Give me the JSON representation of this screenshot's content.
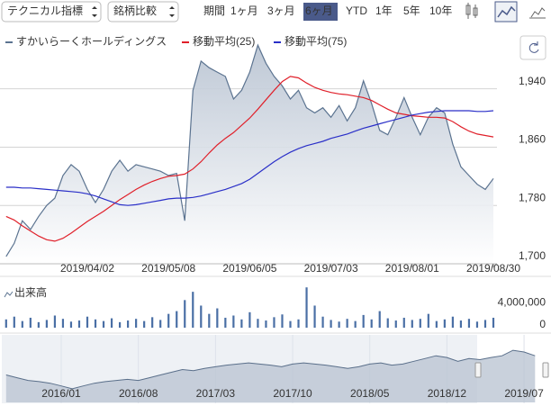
{
  "toolbar": {
    "dropdowns": [
      "テクニカル指標",
      "銘柄比較"
    ],
    "period_label": "期間",
    "periods": [
      "1ヶ月",
      "3ヶ月",
      "6ヶ月",
      "YTD",
      "1年",
      "5年",
      "10年"
    ],
    "selected": 2,
    "disabled": [
      5,
      6
    ]
  },
  "chart_data": [
    {
      "type": "line",
      "categories": [
        null,
        null,
        null,
        null,
        null,
        null,
        null,
        null,
        null,
        null,
        "2019/04/02",
        null,
        null,
        null,
        null,
        null,
        null,
        null,
        null,
        null,
        "2019/05/08",
        null,
        null,
        null,
        null,
        null,
        null,
        null,
        null,
        null,
        "2019/06/05",
        null,
        null,
        null,
        null,
        null,
        null,
        null,
        null,
        null,
        "2019/07/03",
        null,
        null,
        null,
        null,
        null,
        null,
        null,
        null,
        null,
        "2019/08/01",
        null,
        null,
        null,
        null,
        null,
        null,
        null,
        null,
        null,
        "2019/08/30"
      ],
      "series": [
        {
          "name": "すかいらーくホールディングス",
          "color": "#5b7390",
          "fill": "#c3ccd8",
          "values": [
            1710,
            1728,
            1759,
            1747,
            1765,
            1780,
            1790,
            1821,
            1836,
            1827,
            1802,
            1784,
            1802,
            1827,
            1842,
            1827,
            1836,
            1833,
            1830,
            1827,
            1821,
            1824,
            1759,
            1938,
            1978,
            1969,
            1963,
            1957,
            1926,
            1938,
            1963,
            2000,
            1975,
            1957,
            1944,
            1926,
            1938,
            1914,
            1907,
            1914,
            1901,
            1917,
            1896,
            1914,
            1951,
            1920,
            1883,
            1877,
            1901,
            1928,
            1901,
            1877,
            1901,
            1914,
            1907,
            1864,
            1833,
            1821,
            1809,
            1802,
            1817
          ]
        },
        {
          "name": "移動平均(25)",
          "color": "#e0202a",
          "values": [
            1765,
            1760,
            1752,
            1745,
            1738,
            1733,
            1731,
            1735,
            1742,
            1750,
            1758,
            1765,
            1772,
            1780,
            1788,
            1795,
            1802,
            1808,
            1813,
            1817,
            1820,
            1821,
            1823,
            1830,
            1840,
            1852,
            1863,
            1872,
            1880,
            1890,
            1900,
            1912,
            1925,
            1938,
            1950,
            1957,
            1955,
            1948,
            1942,
            1938,
            1935,
            1933,
            1932,
            1930,
            1928,
            1924,
            1918,
            1912,
            1907,
            1905,
            1903,
            1902,
            1901,
            1901,
            1900,
            1895,
            1888,
            1882,
            1878,
            1876,
            1874
          ]
        },
        {
          "name": "移動平均(75)",
          "color": "#2a2fc8",
          "values": [
            1805,
            1805,
            1804,
            1804,
            1803,
            1802,
            1801,
            1800,
            1799,
            1798,
            1796,
            1793,
            1789,
            1785,
            1781,
            1780,
            1781,
            1783,
            1785,
            1787,
            1789,
            1790,
            1790,
            1791,
            1793,
            1796,
            1799,
            1802,
            1806,
            1810,
            1816,
            1824,
            1832,
            1840,
            1847,
            1853,
            1858,
            1862,
            1865,
            1868,
            1872,
            1875,
            1878,
            1882,
            1886,
            1889,
            1892,
            1895,
            1898,
            1901,
            1904,
            1906,
            1908,
            1909,
            1910,
            1910,
            1910,
            1910,
            1909,
            1909,
            1910
          ]
        }
      ],
      "ylim": [
        1700,
        2010
      ],
      "yticks": [
        {
          "value": 1700,
          "label": "1,700"
        },
        {
          "value": 1780,
          "label": "1,780"
        },
        {
          "value": 1860,
          "label": "1,860"
        },
        {
          "value": 1940,
          "label": "1,940"
        }
      ],
      "grid": true
    },
    {
      "type": "bar",
      "title": "出来高",
      "color": "#4a6fa5",
      "values": [
        1500000,
        2000000,
        1200000,
        1800000,
        1000000,
        1400000,
        2200000,
        1600000,
        1100000,
        1300000,
        2000000,
        1500000,
        1200000,
        1700000,
        1000000,
        1300000,
        1600000,
        1200000,
        1900000,
        1400000,
        2500000,
        3000000,
        5000000,
        6500000,
        4000000,
        2500000,
        3500000,
        1800000,
        2200000,
        1500000,
        2800000,
        1600000,
        1300000,
        1900000,
        2400000,
        1200000,
        1500000,
        7300000,
        4000000,
        2000000,
        1400000,
        1100000,
        1600000,
        1200000,
        2300000,
        1500000,
        3000000,
        1700000,
        1300000,
        1800000,
        1400000,
        1600000,
        2500000,
        1200000,
        1500000,
        2000000,
        1300000,
        1600000,
        1100000,
        1400000,
        1800000
      ],
      "ylim": [
        0,
        7500000
      ],
      "yticks": [
        0,
        {
          "value": 4000000,
          "label": "4,000,000"
        }
      ]
    },
    {
      "type": "area",
      "color": "#5a6f8a",
      "fill": "#bcc6d3",
      "categories": [
        null,
        null,
        null,
        null,
        null,
        "2016/01",
        null,
        null,
        null,
        null,
        null,
        null,
        "2016/08",
        null,
        null,
        null,
        null,
        null,
        null,
        "2017/03",
        null,
        null,
        null,
        null,
        null,
        null,
        "2017/10",
        null,
        null,
        null,
        null,
        null,
        null,
        "2018/05",
        null,
        null,
        null,
        null,
        null,
        null,
        "2018/12",
        null,
        null,
        null,
        null,
        null,
        null,
        "2019/07",
        null
      ],
      "values": [
        1500,
        1450,
        1400,
        1380,
        1350,
        1300,
        1250,
        1300,
        1350,
        1380,
        1400,
        1420,
        1400,
        1450,
        1500,
        1550,
        1600,
        1580,
        1620,
        1650,
        1680,
        1700,
        1720,
        1700,
        1680,
        1650,
        1700,
        1720,
        1700,
        1680,
        1650,
        1620,
        1650,
        1700,
        1720,
        1680,
        1700,
        1750,
        1800,
        1850,
        1820,
        1750,
        1800,
        1780,
        1820,
        1850,
        1950,
        1920,
        1850
      ],
      "ylim": [
        1000,
        2100
      ]
    }
  ]
}
